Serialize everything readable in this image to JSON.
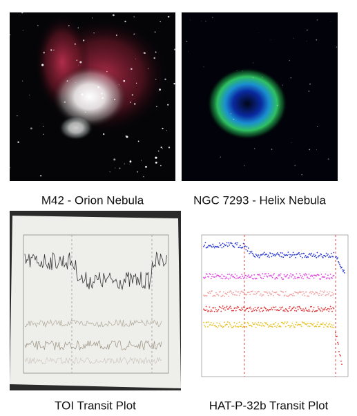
{
  "panels": [
    {
      "caption": "M42 - Orion Nebula"
    },
    {
      "caption": "NGC 7293 - Helix Nebula"
    },
    {
      "caption": "TOI Transit Plot"
    },
    {
      "caption": "HAT-P-32b Transit Plot"
    }
  ]
}
